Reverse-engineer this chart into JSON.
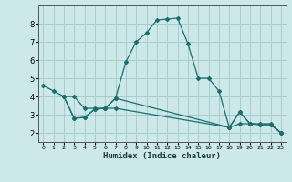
{
  "title": "",
  "xlabel": "Humidex (Indice chaleur)",
  "bg_color": "#cce8e8",
  "grid_color": "#aacccc",
  "line_color": "#1a6e6e",
  "xlim": [
    -0.5,
    23.5
  ],
  "ylim": [
    1.5,
    9.0
  ],
  "xticks": [
    0,
    1,
    2,
    3,
    4,
    5,
    6,
    7,
    8,
    9,
    10,
    11,
    12,
    13,
    14,
    15,
    16,
    17,
    18,
    19,
    20,
    21,
    22,
    23
  ],
  "yticks": [
    2,
    3,
    4,
    5,
    6,
    7,
    8
  ],
  "series": [
    {
      "x": [
        0,
        1,
        2,
        3,
        4,
        5,
        6,
        7,
        8,
        9,
        10,
        11,
        12,
        13,
        14,
        15,
        16,
        17,
        18,
        19,
        20,
        21,
        22,
        23
      ],
      "y": [
        4.6,
        4.3,
        4.0,
        2.8,
        2.85,
        3.3,
        3.35,
        3.9,
        5.9,
        7.0,
        7.5,
        8.2,
        8.25,
        8.3,
        6.9,
        5.0,
        5.0,
        4.3,
        2.3,
        3.15,
        2.5,
        2.45,
        2.45,
        2.0
      ]
    },
    {
      "x": [
        2,
        3,
        4,
        5,
        6,
        7,
        18,
        19,
        20,
        21,
        22,
        23
      ],
      "y": [
        4.0,
        4.0,
        3.35,
        3.35,
        3.35,
        3.9,
        2.3,
        3.15,
        2.5,
        2.5,
        2.5,
        2.0
      ]
    },
    {
      "x": [
        2,
        3,
        4,
        5,
        6,
        7,
        18,
        19,
        20,
        21,
        22,
        23
      ],
      "y": [
        4.0,
        2.8,
        2.85,
        3.3,
        3.35,
        3.35,
        2.3,
        2.5,
        2.5,
        2.45,
        2.45,
        2.0
      ]
    }
  ]
}
